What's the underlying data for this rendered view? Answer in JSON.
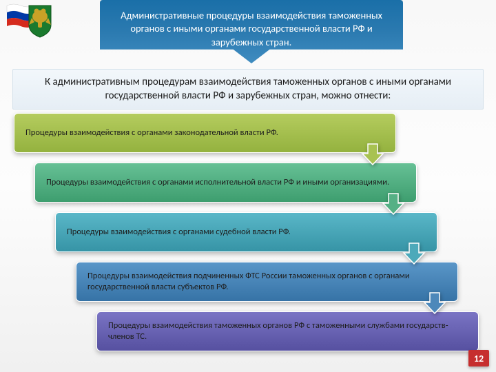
{
  "header": {
    "title": "Административные процедуры взаимодействия таможенных органов с иными органами государственной власти РФ и зарубежных стран.",
    "bg_gradient": [
      "#1a6fa8",
      "#3f8cc0"
    ],
    "text_color": "#ffffff",
    "font_size": 14.5
  },
  "subtitle": {
    "text": "К административным процедурам взаимодействия таможенных органов с иными органами государственной власти РФ и зарубежных стран, можно отнести:",
    "bg_gradient": [
      "#f2f7fb",
      "#e6eef5"
    ],
    "border_color": "#d5e1ea",
    "font_size": 15
  },
  "steps": {
    "type": "staircase-list",
    "item_width": 555,
    "item_height": 58,
    "indent_step": 30,
    "gap": 14,
    "font_size": 12.5,
    "items": [
      {
        "text": "Процедуры взаимодействия с органами законодательной власти РФ.",
        "bg_gradient": [
          "#b5cc5e",
          "#94b23f"
        ],
        "arrow_fill": "#a8c251"
      },
      {
        "text": "Процедуры взаимодействия с органами исполнительной власти РФ и иными организациями.",
        "bg_gradient": [
          "#66c095",
          "#3e9e6f"
        ],
        "arrow_fill": "#55b085"
      },
      {
        "text": "Процедуры взаимодействия с органами судебной власти РФ.",
        "bg_gradient": [
          "#5ab7c8",
          "#3694a6"
        ],
        "arrow_fill": "#4da9ba"
      },
      {
        "text": "Процедуры взаимодействия подчиненных ФТС России таможенных органов с органами государственной власти субъектов РФ.",
        "bg_gradient": [
          "#5a96c8",
          "#3673a6"
        ],
        "arrow_fill": "#4d88ba"
      },
      {
        "text": "Процедуры взаимодействия таможенных органов РФ с таможенными службами государств-членов ТС.",
        "bg_gradient": [
          "#7a74c4",
          "#5650a0"
        ],
        "arrow_fill": null
      }
    ]
  },
  "page_number": {
    "value": "12",
    "bg_color": "#c62e2e",
    "text_color": "#ffffff"
  },
  "emblem": {
    "flag_colors": [
      "#ffffff",
      "#0039a6",
      "#d52b1e"
    ],
    "shield_color": "#1a7a2e",
    "eagle_color": "#c9a227"
  }
}
